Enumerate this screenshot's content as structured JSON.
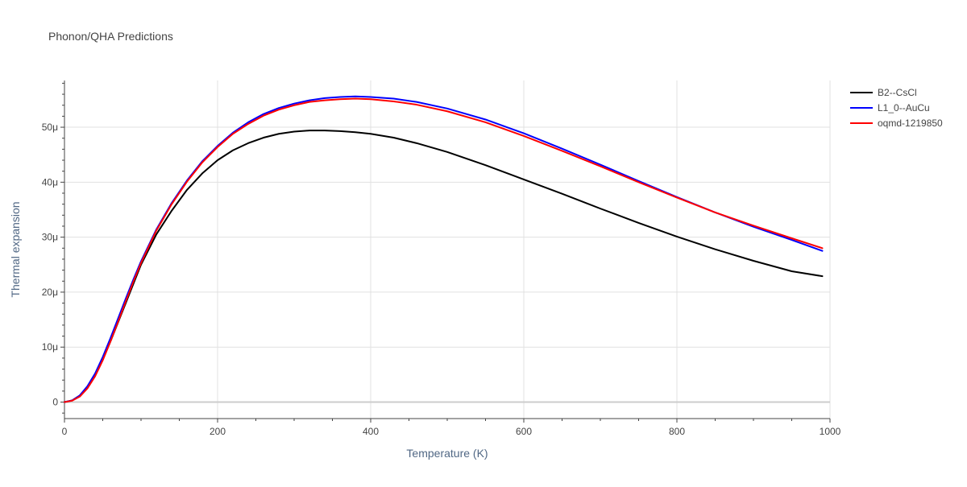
{
  "chart_data": {
    "type": "line",
    "title": "Phonon/QHA Predictions",
    "xlabel": "Temperature (K)",
    "ylabel": "Thermal expansion",
    "xlim": [
      0,
      1000
    ],
    "ylim": [
      -3e-06,
      5.85e-05
    ],
    "grid": true,
    "legend_position": "top-right",
    "x_ticks": [
      {
        "value": 0,
        "label": "0"
      },
      {
        "value": 200,
        "label": "200"
      },
      {
        "value": 400,
        "label": "400"
      },
      {
        "value": 600,
        "label": "600"
      },
      {
        "value": 800,
        "label": "800"
      },
      {
        "value": 1000,
        "label": "1000"
      }
    ],
    "y_ticks": [
      {
        "value": 0,
        "label": "0"
      },
      {
        "value": 1e-05,
        "label": "10μ"
      },
      {
        "value": 2e-05,
        "label": "20μ"
      },
      {
        "value": 3e-05,
        "label": "30μ"
      },
      {
        "value": 4e-05,
        "label": "40μ"
      },
      {
        "value": 5e-05,
        "label": "50μ"
      }
    ],
    "series": [
      {
        "name": "B2--CsCl",
        "color": "#000000",
        "x": [
          0,
          10,
          20,
          30,
          40,
          50,
          60,
          70,
          80,
          90,
          100,
          120,
          140,
          160,
          180,
          200,
          220,
          240,
          260,
          280,
          300,
          320,
          340,
          360,
          380,
          400,
          430,
          460,
          500,
          550,
          600,
          650,
          700,
          750,
          800,
          850,
          900,
          950,
          990
        ],
        "y": [
          0,
          3e-07,
          1.2e-06,
          2.8e-06,
          5e-06,
          7.8e-06,
          1.1e-05,
          1.45e-05,
          1.8e-05,
          2.15e-05,
          2.5e-05,
          3.05e-05,
          3.48e-05,
          3.86e-05,
          4.16e-05,
          4.4e-05,
          4.58e-05,
          4.71e-05,
          4.81e-05,
          4.88e-05,
          4.92e-05,
          4.94e-05,
          4.94e-05,
          4.93e-05,
          4.91e-05,
          4.88e-05,
          4.81e-05,
          4.71e-05,
          4.55e-05,
          4.31e-05,
          4.05e-05,
          3.79e-05,
          3.52e-05,
          3.26e-05,
          3.01e-05,
          2.78e-05,
          2.57e-05,
          2.38e-05,
          2.29e-05
        ]
      },
      {
        "name": "L1_0--AuCu",
        "color": "#0000ff",
        "x": [
          0,
          10,
          20,
          30,
          40,
          50,
          60,
          70,
          80,
          90,
          100,
          120,
          140,
          160,
          180,
          200,
          220,
          240,
          260,
          280,
          300,
          320,
          340,
          360,
          380,
          400,
          430,
          460,
          500,
          550,
          600,
          650,
          700,
          750,
          800,
          850,
          900,
          950,
          990
        ],
        "y": [
          0,
          3e-07,
          1.2e-06,
          2.9e-06,
          5.2e-06,
          8.2e-06,
          1.16e-05,
          1.52e-05,
          1.88e-05,
          2.23e-05,
          2.56e-05,
          3.14e-05,
          3.62e-05,
          4.03e-05,
          4.38e-05,
          4.66e-05,
          4.9e-05,
          5.09e-05,
          5.24e-05,
          5.35e-05,
          5.43e-05,
          5.49e-05,
          5.53e-05,
          5.55e-05,
          5.56e-05,
          5.55e-05,
          5.52e-05,
          5.46e-05,
          5.34e-05,
          5.14e-05,
          4.89e-05,
          4.61e-05,
          4.32e-05,
          4.02e-05,
          3.73e-05,
          3.45e-05,
          3.19e-05,
          2.95e-05,
          2.75e-05
        ]
      },
      {
        "name": "oqmd-1219850",
        "color": "#ff0000",
        "x": [
          0,
          10,
          20,
          30,
          40,
          50,
          60,
          70,
          80,
          90,
          100,
          120,
          140,
          160,
          180,
          200,
          220,
          240,
          260,
          280,
          300,
          320,
          340,
          360,
          380,
          400,
          430,
          460,
          500,
          550,
          600,
          650,
          700,
          750,
          800,
          850,
          900,
          950,
          990
        ],
        "y": [
          0,
          2.5e-07,
          1e-06,
          2.5e-06,
          4.7e-06,
          7.6e-06,
          1.1e-05,
          1.46e-05,
          1.83e-05,
          2.19e-05,
          2.53e-05,
          3.12e-05,
          3.6e-05,
          4.01e-05,
          4.36e-05,
          4.64e-05,
          4.88e-05,
          5.06e-05,
          5.21e-05,
          5.32e-05,
          5.4e-05,
          5.46e-05,
          5.49e-05,
          5.51e-05,
          5.52e-05,
          5.51e-05,
          5.47e-05,
          5.41e-05,
          5.29e-05,
          5.09e-05,
          4.84e-05,
          4.57e-05,
          4.29e-05,
          4e-05,
          3.72e-05,
          3.45e-05,
          3.21e-05,
          2.98e-05,
          2.8e-05
        ]
      }
    ]
  }
}
